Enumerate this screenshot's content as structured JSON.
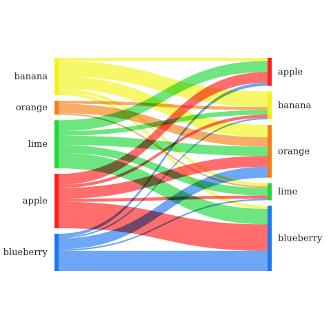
{
  "chart_data": {
    "type": "sankey",
    "title": "",
    "colors": {
      "apple": "#ff1f1f",
      "banana": "#f2f21a",
      "orange": "#f57f17",
      "lime": "#1fd83c",
      "blueberry": "#1e78f0"
    },
    "left_nodes": [
      {
        "id": "banana",
        "label": "banana"
      },
      {
        "id": "orange",
        "label": "orange"
      },
      {
        "id": "lime",
        "label": "lime"
      },
      {
        "id": "apple",
        "label": "apple"
      },
      {
        "id": "blueberry",
        "label": "blueberry"
      }
    ],
    "right_nodes": [
      {
        "id": "apple",
        "label": "apple"
      },
      {
        "id": "banana",
        "label": "banana"
      },
      {
        "id": "orange",
        "label": "orange"
      },
      {
        "id": "lime",
        "label": "lime"
      },
      {
        "id": "blueberry",
        "label": "blueberry"
      }
    ],
    "flows": [
      {
        "source": "banana",
        "target": "apple",
        "value": 2
      },
      {
        "source": "banana",
        "target": "banana",
        "value": 10
      },
      {
        "source": "banana",
        "target": "orange",
        "value": 8
      },
      {
        "source": "banana",
        "target": "lime",
        "value": 2
      },
      {
        "source": "banana",
        "target": "blueberry",
        "value": 2
      },
      {
        "source": "orange",
        "target": "banana",
        "value": 2
      },
      {
        "source": "orange",
        "target": "orange",
        "value": 6
      },
      {
        "source": "orange",
        "target": "lime",
        "value": 1
      },
      {
        "source": "lime",
        "target": "apple",
        "value": 7
      },
      {
        "source": "lime",
        "target": "banana",
        "value": 3
      },
      {
        "source": "lime",
        "target": "orange",
        "value": 6
      },
      {
        "source": "lime",
        "target": "lime",
        "value": 5
      },
      {
        "source": "lime",
        "target": "blueberry",
        "value": 10
      },
      {
        "source": "apple",
        "target": "apple",
        "value": 7
      },
      {
        "source": "apple",
        "target": "banana",
        "value": 2
      },
      {
        "source": "apple",
        "target": "orange",
        "value": 7
      },
      {
        "source": "apple",
        "target": "lime",
        "value": 2
      },
      {
        "source": "apple",
        "target": "blueberry",
        "value": 17
      },
      {
        "source": "blueberry",
        "target": "apple",
        "value": 2
      },
      {
        "source": "blueberry",
        "target": "banana",
        "value": 1
      },
      {
        "source": "blueberry",
        "target": "orange",
        "value": 7
      },
      {
        "source": "blueberry",
        "target": "lime",
        "value": 1
      },
      {
        "source": "blueberry",
        "target": "blueberry",
        "value": 13
      }
    ]
  }
}
